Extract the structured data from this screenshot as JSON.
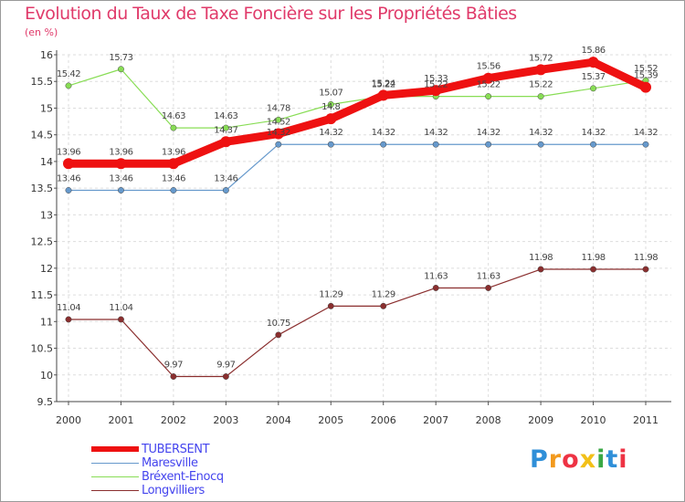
{
  "chart_data": {
    "type": "line",
    "title": "Evolution du Taux de Taxe Foncière sur les Propriétés Bâties",
    "ylabel": "(en %)",
    "xlabel": "",
    "categories": [
      "2000",
      "2001",
      "2002",
      "2003",
      "2004",
      "2005",
      "2006",
      "2007",
      "2008",
      "2009",
      "2010",
      "2011"
    ],
    "ylim": [
      9.5,
      16
    ],
    "ytick_step": 0.5,
    "ytick_labels": [
      "9.5",
      "10",
      "10.5",
      "11",
      "11.5",
      "12",
      "12.5",
      "13",
      "13.5",
      "14",
      "14.5",
      "15",
      "15.5",
      "16"
    ],
    "grid": true,
    "legend_position": "bottom-left",
    "series": [
      {
        "name": "TUBERSENT",
        "color": "#ee1111",
        "emphasis": true,
        "values": [
          13.96,
          13.96,
          13.96,
          14.37,
          14.52,
          14.8,
          15.24,
          15.33,
          15.56,
          15.72,
          15.86,
          15.39
        ],
        "labels": [
          "13.96",
          "13.96",
          "13.96",
          "14.37",
          "14.52",
          "14.8",
          "15.24",
          "15.33",
          "15.56",
          "15.72",
          "15.86",
          "15.39"
        ]
      },
      {
        "name": "Maresville",
        "color": "#6699cc",
        "values": [
          13.46,
          13.46,
          13.46,
          13.46,
          14.32,
          14.32,
          14.32,
          14.32,
          14.32,
          14.32,
          14.32,
          14.32
        ],
        "labels": [
          "13.46",
          "13.46",
          "13.46",
          "13.46",
          "14.32",
          "14.32",
          "14.32",
          "14.32",
          "14.32",
          "14.32",
          "14.32",
          "14.32"
        ]
      },
      {
        "name": "Bréxent-Enocq",
        "color": "#88dd55",
        "values": [
          15.42,
          15.73,
          14.63,
          14.63,
          14.78,
          15.07,
          15.22,
          15.22,
          15.22,
          15.22,
          15.37,
          15.52
        ],
        "labels": [
          "15.42",
          "15.73",
          "14.63",
          "14.63",
          "14.78",
          "15.07",
          "15.22",
          "15.22",
          "15.22",
          "15.22",
          "15.37",
          "15.52"
        ]
      },
      {
        "name": "Longvilliers",
        "color": "#8a2e2e",
        "values": [
          11.04,
          11.04,
          9.97,
          9.97,
          10.75,
          11.29,
          11.29,
          11.63,
          11.63,
          11.98,
          11.98,
          11.98
        ],
        "labels": [
          "11.04",
          "11.04",
          "9.97",
          "9.97",
          "10.75",
          "11.29",
          "11.29",
          "11.63",
          "11.63",
          "11.98",
          "11.98",
          "11.98"
        ]
      }
    ]
  },
  "brand": {
    "letters": [
      "P",
      "r",
      "o",
      "x",
      "i",
      "t",
      "i"
    ],
    "colors": [
      "#2f8fd8",
      "#f29a1e",
      "#ee3344",
      "#f2c018",
      "#3aa845",
      "#2f8fd8",
      "#ee3344"
    ]
  }
}
